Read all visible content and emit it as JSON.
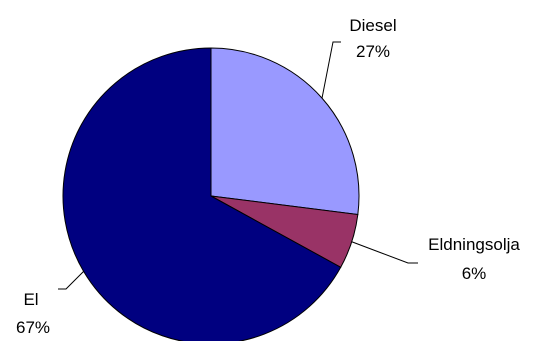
{
  "chart_data": {
    "type": "pie",
    "title": "",
    "slices": [
      {
        "label": "Diesel",
        "value": 27,
        "value_label": "27%",
        "color": "#9999FF"
      },
      {
        "label": "Eldningsolja",
        "value": 6,
        "value_label": "6%",
        "color": "#993366"
      },
      {
        "label": "El",
        "value": 67,
        "value_label": "67%",
        "color": "#000080"
      }
    ],
    "legend": "none",
    "start_angle": "12 o'clock, clockwise",
    "slice_border_color": "#000000"
  }
}
